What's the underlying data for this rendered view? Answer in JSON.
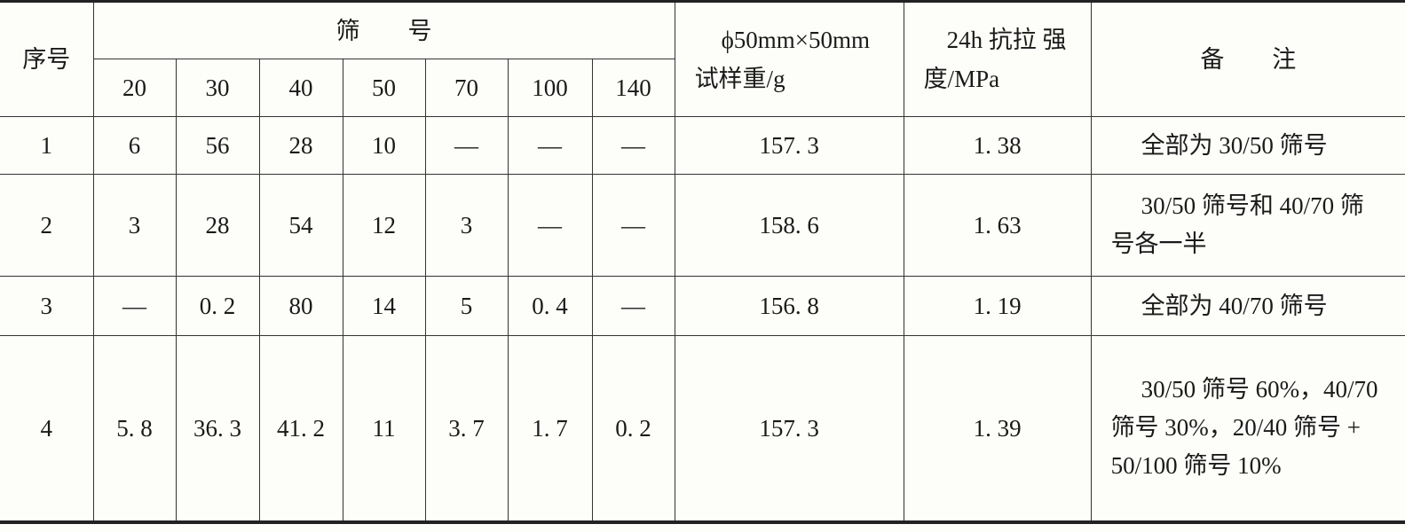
{
  "header": {
    "index": "序号",
    "sieve_group": "筛　　号",
    "sieves": [
      "20",
      "30",
      "40",
      "50",
      "70",
      "100",
      "140"
    ],
    "sample_weight": "ϕ50mm×50mm 试样重/g",
    "strength": "24h 抗拉 强度/MPa",
    "remarks": "备　　注"
  },
  "rows": [
    {
      "index": "1",
      "values": [
        "6",
        "56",
        "28",
        "10",
        "—",
        "—",
        "—"
      ],
      "weight": "157. 3",
      "strength": "1. 38",
      "remarks": "全部为 30/50 筛号"
    },
    {
      "index": "2",
      "values": [
        "3",
        "28",
        "54",
        "12",
        "3",
        "—",
        "—"
      ],
      "weight": "158. 6",
      "strength": "1. 63",
      "remarks": "30/50 筛号和 40/70 筛号各一半"
    },
    {
      "index": "3",
      "values": [
        "—",
        "0. 2",
        "80",
        "14",
        "5",
        "0. 4",
        "—"
      ],
      "weight": "156. 8",
      "strength": "1. 19",
      "remarks": "全部为 40/70 筛号"
    },
    {
      "index": "4",
      "values": [
        "5. 8",
        "36. 3",
        "41. 2",
        "11",
        "3. 7",
        "1. 7",
        "0. 2"
      ],
      "weight": "157. 3",
      "strength": "1. 39",
      "remarks": "30/50 筛号 60%，40/70 筛号 30%，20/40 筛号 + 50/100 筛号 10%"
    }
  ]
}
